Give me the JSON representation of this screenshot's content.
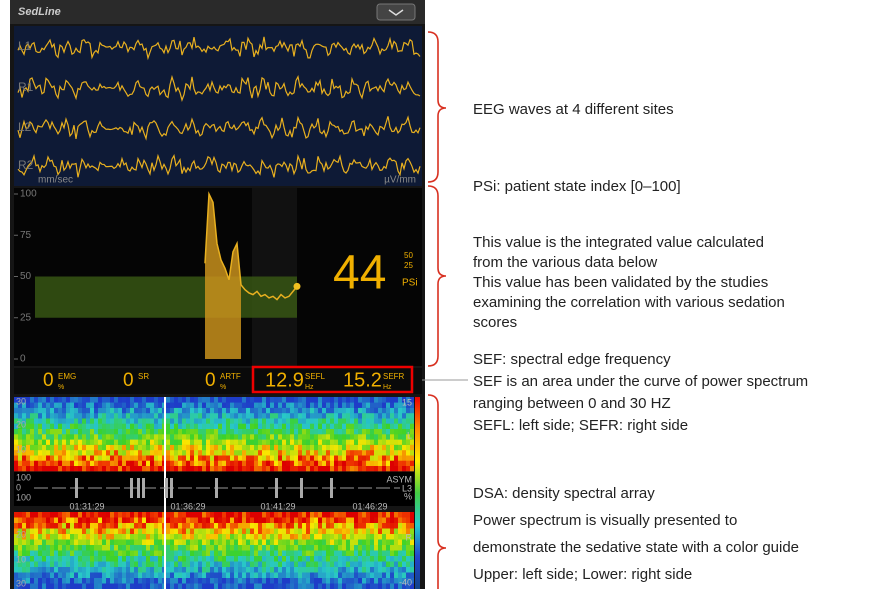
{
  "header": {
    "title": "SedLine"
  },
  "eeg": {
    "channels": [
      "L1",
      "R1",
      "L2",
      "R2"
    ],
    "speed": "mm/sec",
    "scale": "µV/mm"
  },
  "psi": {
    "ylim": [
      0,
      100
    ],
    "yticks": [
      0,
      25,
      50,
      75,
      100
    ],
    "band": [
      25,
      50
    ],
    "trend": [
      58,
      100,
      95,
      70,
      60,
      55,
      48,
      65,
      70,
      45,
      42,
      40,
      39,
      41,
      38,
      39,
      37,
      38,
      36,
      39,
      37,
      38,
      41,
      44
    ],
    "value": 44,
    "scale_marks": [
      "50",
      "25"
    ],
    "label": "PSi"
  },
  "params": [
    {
      "value": 0,
      "name": "EMG",
      "unit": "%"
    },
    {
      "value": 0,
      "name": "SR"
    },
    {
      "value": 0,
      "name": "ARTF",
      "unit": "%"
    },
    {
      "value": 12.9,
      "name": "SEFL",
      "unit": "Hz"
    },
    {
      "value": 15.2,
      "name": "SEFR",
      "unit": "Hz"
    }
  ],
  "dsa": {
    "upper_axis": [
      "30",
      "20",
      "10"
    ],
    "asym_axis": [
      "100",
      "0",
      "100"
    ],
    "lower_axis": [
      "20",
      "10",
      "30"
    ],
    "times": [
      "01:31:29",
      "01:36:29",
      "01:41:29",
      "01:46:29"
    ],
    "scale_top": "15",
    "upper_label": "L",
    "asym_label": "ASYM",
    "asym_site": "L3",
    "asym_unit": "%",
    "lower_label": "R",
    "scale_bottom": "-40"
  },
  "annotations": [
    {
      "lines": [
        "EEG waves at 4 different sites"
      ]
    },
    {
      "lines": [
        "PSi: patient state index [0–100]"
      ]
    },
    {
      "lines": [
        "This value is the integrated value calculated",
        "from the various data below",
        "This value has been validated by the studies",
        "examining the correlation with various sedation",
        "scores"
      ]
    },
    {
      "lines": [
        "SEF: spectral edge frequency",
        "SEF is an area under the curve of power spectrum",
        "ranging between 0 and 30 HZ",
        "SEFL: left side; SEFR: right side"
      ]
    },
    {
      "lines": [
        "DSA: density spectral array",
        "Power spectrum is visually presented to",
        "demonstrate the sedative state with a color guide",
        "Upper: left side; Lower: right side"
      ]
    }
  ]
}
